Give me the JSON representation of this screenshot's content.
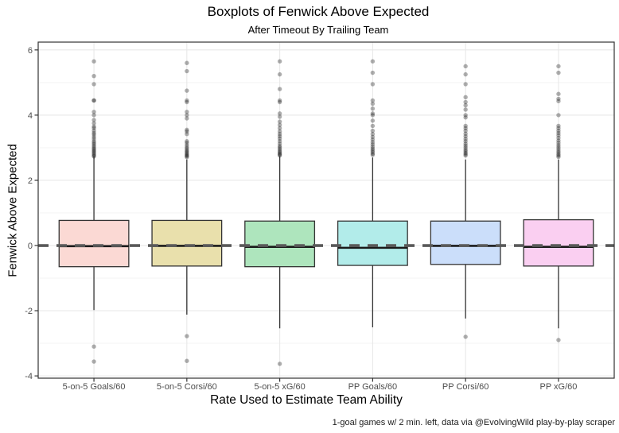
{
  "chart_data": {
    "type": "boxplot",
    "title": "Boxplots of Fenwick Above Expected",
    "subtitle": "After Timeout By Trailing Team",
    "xlabel": "Rate Used to Estimate Team Ability",
    "ylabel": "Fenwick Above Expected",
    "caption": "1-goal games w/ 2 min. left, data via @EvolvingWild play-by-play scraper",
    "categories": [
      "5-on-5 Goals/60",
      "5-on-5 Corsi/60",
      "5-on-5 xG/60",
      "PP Goals/60",
      "PP Corsi/60",
      "PP xG/60"
    ],
    "y_axis": {
      "ticks": [
        -4,
        -2,
        0,
        2,
        4,
        6
      ],
      "minor_ticks": [
        -3,
        -1,
        1,
        3,
        5
      ],
      "ylim": [
        -4.07,
        6.24
      ]
    },
    "reference_line": {
      "y": 0,
      "style": "dashed",
      "color": "#595959"
    },
    "legend": "none",
    "grid": true,
    "style_colors": {
      "box_border": "#333333",
      "median": "#1a1a1a",
      "major_grid": "#e8e8e8",
      "minor_grid": "#f3f3f3",
      "panel_border": "#333333",
      "tick_label": "#4d4d4d",
      "outlier": "#1a1a1a"
    },
    "boxes": [
      {
        "category": "5-on-5 Goals/60",
        "fill": "#FBD9D4",
        "q1": -0.65,
        "median": -0.02,
        "q3": 0.77,
        "whisker_low": -1.98,
        "whisker_high": 2.74,
        "outliers_low": [
          -3.1,
          -3.56
        ],
        "outliers_high": [
          5.65,
          5.2,
          4.95,
          4.45,
          4.45,
          4.1,
          4.0,
          3.85,
          3.75,
          3.65,
          3.6,
          3.52,
          3.45,
          3.4,
          3.33,
          3.27,
          3.2,
          3.15,
          3.1,
          3.05,
          3.0,
          2.96,
          2.92,
          2.88,
          2.84,
          2.8,
          2.76,
          2.73
        ]
      },
      {
        "category": "5-on-5 Corsi/60",
        "fill": "#E9E0AC",
        "q1": -0.63,
        "median": -0.01,
        "q3": 0.77,
        "whisker_low": -2.12,
        "whisker_high": 2.64,
        "outliers_low": [
          -2.78,
          -3.54
        ],
        "outliers_high": [
          5.6,
          5.35,
          4.75,
          4.45,
          4.4,
          4.1,
          4.0,
          3.9,
          3.55,
          3.5,
          3.42,
          3.2,
          3.15,
          3.08,
          3.02,
          2.97,
          2.92,
          2.88,
          2.84,
          2.8,
          2.77,
          2.74,
          2.71
        ]
      },
      {
        "category": "5-on-5 xG/60",
        "fill": "#AEE5BD",
        "q1": -0.65,
        "median": -0.04,
        "q3": 0.75,
        "whisker_low": -2.54,
        "whisker_high": 2.74,
        "outliers_low": [
          -3.63
        ],
        "outliers_high": [
          5.65,
          5.25,
          4.8,
          4.45,
          4.4,
          4.05,
          3.95,
          3.8,
          3.7,
          3.6,
          3.5,
          3.42,
          3.35,
          3.28,
          3.2,
          3.12,
          3.05,
          3.0,
          2.95,
          2.9,
          2.86,
          2.82,
          2.79,
          2.76
        ]
      },
      {
        "category": "PP Goals/60",
        "fill": "#B2ECEA",
        "q1": -0.61,
        "median": -0.07,
        "q3": 0.75,
        "whisker_low": -2.51,
        "whisker_high": 2.7,
        "outliers_low": [],
        "outliers_high": [
          5.65,
          5.3,
          4.95,
          4.45,
          4.35,
          4.2,
          4.05,
          4.0,
          3.83,
          3.67,
          3.52,
          3.42,
          3.33,
          3.25,
          3.17,
          3.1,
          3.03,
          2.97,
          2.92,
          2.87,
          2.82,
          2.78
        ]
      },
      {
        "category": "PP Corsi/60",
        "fill": "#CBDEFA",
        "q1": -0.58,
        "median": -0.01,
        "q3": 0.75,
        "whisker_low": -2.24,
        "whisker_high": 2.64,
        "outliers_low": [
          -2.8
        ],
        "outliers_high": [
          5.5,
          5.25,
          4.95,
          4.55,
          4.4,
          4.3,
          4.17,
          4.0,
          3.93,
          3.67,
          3.6,
          3.52,
          3.43,
          3.35,
          3.27,
          3.2,
          3.12,
          3.06,
          3.0,
          2.94,
          2.89,
          2.84,
          2.8,
          2.76
        ]
      },
      {
        "category": "PP xG/60",
        "fill": "#FACFF1",
        "q1": -0.63,
        "median": -0.04,
        "q3": 0.79,
        "whisker_low": -2.54,
        "whisker_high": 2.64,
        "outliers_low": [
          -2.9
        ],
        "outliers_high": [
          5.5,
          5.3,
          4.65,
          4.5,
          4.43,
          4.0,
          3.67,
          3.6,
          3.52,
          3.45,
          3.38,
          3.3,
          3.22,
          3.15,
          3.08,
          3.02,
          2.96,
          2.9,
          2.85,
          2.8,
          2.76,
          2.72
        ]
      }
    ]
  }
}
